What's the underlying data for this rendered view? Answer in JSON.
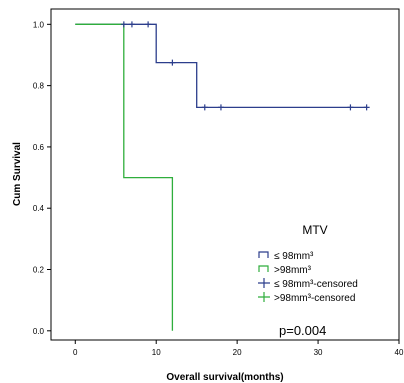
{
  "chart_data": {
    "type": "line",
    "xlabel": "Overall survival(months)",
    "ylabel": "Cum Survival",
    "xlim": [
      -3,
      40
    ],
    "ylim": [
      -0.03,
      1.05
    ],
    "x_ticks": [
      0,
      10,
      20,
      30,
      40
    ],
    "x_tick_labels": [
      "0",
      "10",
      "20",
      "30",
      "40"
    ],
    "y_ticks": [
      0.0,
      0.2,
      0.4,
      0.6,
      0.8,
      1.0
    ],
    "y_tick_labels": [
      "0.0",
      "0.2",
      "0.4",
      "0.6",
      "0.8",
      "1.0"
    ],
    "grid": false,
    "legend": {
      "title": "MTV",
      "placement": "bottom-right",
      "entries": [
        "≤ 98mm³",
        ">98mm³",
        "≤ 98mm³-censored",
        ">98mm³-censored"
      ]
    },
    "annotation": "p=0.004",
    "series": [
      {
        "name": "≤ 98mm³",
        "color": "#2c3e8c",
        "step_x": [
          0,
          10,
          10,
          15,
          15,
          36
        ],
        "step_y": [
          1.0,
          1.0,
          0.875,
          0.875,
          0.729,
          0.729
        ],
        "censored": [
          {
            "x": 6,
            "y": 1.0
          },
          {
            "x": 7,
            "y": 1.0
          },
          {
            "x": 9,
            "y": 1.0
          },
          {
            "x": 12,
            "y": 0.875
          },
          {
            "x": 16,
            "y": 0.729
          },
          {
            "x": 18,
            "y": 0.729
          },
          {
            "x": 34,
            "y": 0.729
          },
          {
            "x": 36,
            "y": 0.729
          }
        ]
      },
      {
        "name": ">98mm³",
        "color": "#2fae3c",
        "step_x": [
          0,
          6,
          6,
          12,
          12
        ],
        "step_y": [
          1.0,
          1.0,
          0.5,
          0.5,
          0.0
        ],
        "censored": []
      }
    ]
  }
}
